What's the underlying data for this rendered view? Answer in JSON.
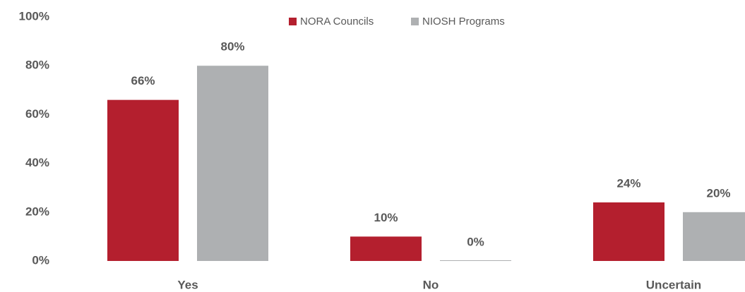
{
  "chart_data": {
    "type": "bar",
    "categories": [
      "Yes",
      "No",
      "Uncertain"
    ],
    "series": [
      {
        "name": "NORA Councils",
        "color": "#b41f2e",
        "values": [
          66,
          10,
          24
        ],
        "value_labels": [
          "66%",
          "10%",
          "24%"
        ]
      },
      {
        "name": "NIOSH Programs",
        "color": "#aeb0b2",
        "values": [
          80,
          0,
          20
        ],
        "value_labels": [
          "80%",
          "0%",
          "20%"
        ]
      }
    ],
    "ylim": [
      0,
      100
    ],
    "yticks": [
      {
        "value": 0,
        "label": "0%"
      },
      {
        "value": 20,
        "label": "20%"
      },
      {
        "value": 40,
        "label": "40%"
      },
      {
        "value": 60,
        "label": "60%"
      },
      {
        "value": 80,
        "label": "80%"
      },
      {
        "value": 100,
        "label": "100%"
      }
    ],
    "grid": false,
    "legend": "top"
  }
}
